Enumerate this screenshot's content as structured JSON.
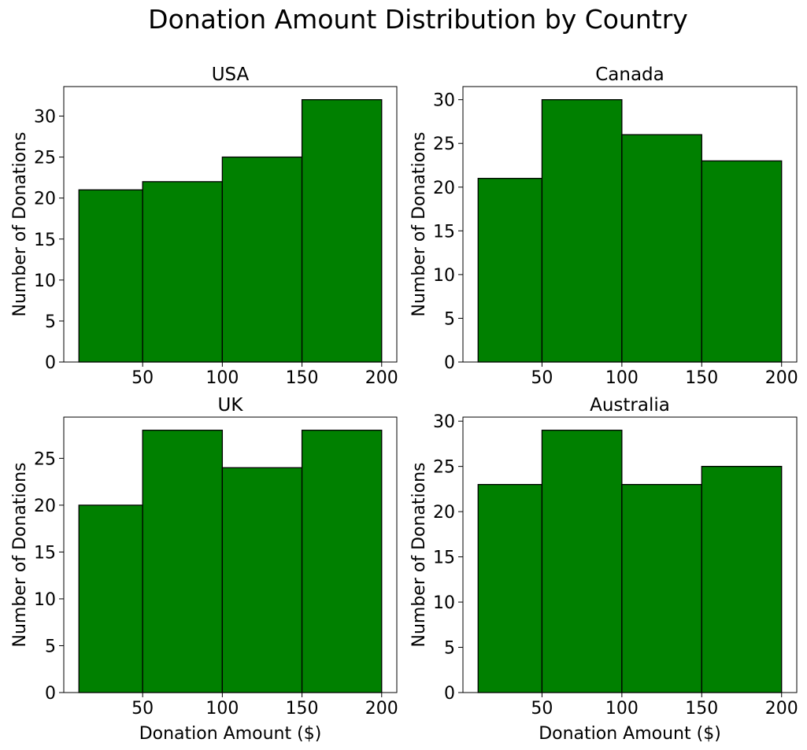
{
  "figure": {
    "title": "Donation Amount Distribution by Country",
    "bar_color": "#008000",
    "edge_color": "#000000"
  },
  "chart_data": [
    {
      "type": "bar",
      "title": "USA",
      "xlabel": "",
      "ylabel": "Number of Donations",
      "bin_edges": [
        10,
        50,
        100,
        150,
        200
      ],
      "values": [
        21,
        22,
        25,
        32
      ],
      "xlim": [
        0.5,
        209.5
      ],
      "ylim": [
        0,
        33.6
      ],
      "xticks": [
        50,
        100,
        150,
        200
      ],
      "yticks": [
        0,
        5,
        10,
        15,
        20,
        25,
        30
      ]
    },
    {
      "type": "bar",
      "title": "Canada",
      "xlabel": "",
      "ylabel": "Number of Donations",
      "bin_edges": [
        10,
        50,
        100,
        150,
        200
      ],
      "values": [
        21,
        30,
        26,
        23
      ],
      "xlim": [
        0.5,
        209.5
      ],
      "ylim": [
        0,
        31.5
      ],
      "xticks": [
        50,
        100,
        150,
        200
      ],
      "yticks": [
        0,
        5,
        10,
        15,
        20,
        25,
        30
      ]
    },
    {
      "type": "bar",
      "title": "UK",
      "xlabel": "Donation Amount ($)",
      "ylabel": "Number of Donations",
      "bin_edges": [
        10,
        50,
        100,
        150,
        200
      ],
      "values": [
        20,
        28,
        24,
        28
      ],
      "xlim": [
        0.5,
        209.5
      ],
      "ylim": [
        0,
        29.4
      ],
      "xticks": [
        50,
        100,
        150,
        200
      ],
      "yticks": [
        0,
        5,
        10,
        15,
        20,
        25
      ]
    },
    {
      "type": "bar",
      "title": "Australia",
      "xlabel": "Donation Amount ($)",
      "ylabel": "Number of Donations",
      "bin_edges": [
        10,
        50,
        100,
        150,
        200
      ],
      "values": [
        23,
        29,
        23,
        25
      ],
      "xlim": [
        0.5,
        209.5
      ],
      "ylim": [
        0,
        30.45
      ],
      "xticks": [
        50,
        100,
        150,
        200
      ],
      "yticks": [
        0,
        5,
        10,
        15,
        20,
        25,
        30
      ]
    }
  ]
}
